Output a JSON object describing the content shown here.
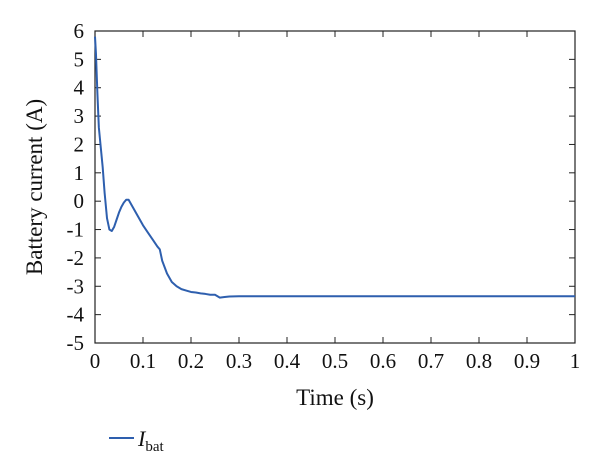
{
  "chart_data": {
    "type": "line",
    "xlabel": "Time (s)",
    "ylabel": "Battery current (A)",
    "xlim": [
      0,
      1
    ],
    "ylim": [
      -5,
      6
    ],
    "x_ticks": [
      "0",
      "0.1",
      "0.2",
      "0.3",
      "0.4",
      "0.5",
      "0.6",
      "0.7",
      "0.8",
      "0.9",
      "1"
    ],
    "y_ticks": [
      "6",
      "5",
      "4",
      "3",
      "2",
      "1",
      "0",
      "-1",
      "-2",
      "-3",
      "-4",
      "-5"
    ],
    "grid": false,
    "legend_position": "bottom-left",
    "series": [
      {
        "name_main": "I",
        "name_sub": "bat",
        "color": "#2e5fae",
        "x": [
          0,
          0.002,
          0.005,
          0.008,
          0.012,
          0.016,
          0.02,
          0.025,
          0.03,
          0.035,
          0.04,
          0.045,
          0.05,
          0.055,
          0.06,
          0.065,
          0.07,
          0.08,
          0.09,
          0.1,
          0.11,
          0.12,
          0.13,
          0.135,
          0.14,
          0.15,
          0.16,
          0.17,
          0.18,
          0.19,
          0.2,
          0.21,
          0.22,
          0.23,
          0.24,
          0.25,
          0.26,
          0.27,
          0.28,
          0.3,
          0.35,
          0.4,
          0.5,
          0.6,
          0.7,
          0.8,
          0.9,
          1.0
        ],
        "y": [
          5.8,
          5.2,
          3.8,
          2.6,
          1.9,
          1.2,
          0.3,
          -0.6,
          -1.0,
          -1.05,
          -0.9,
          -0.65,
          -0.4,
          -0.2,
          -0.05,
          0.05,
          0.05,
          -0.25,
          -0.55,
          -0.85,
          -1.1,
          -1.35,
          -1.6,
          -1.7,
          -2.1,
          -2.55,
          -2.85,
          -3.0,
          -3.1,
          -3.15,
          -3.2,
          -3.22,
          -3.25,
          -3.27,
          -3.3,
          -3.3,
          -3.4,
          -3.38,
          -3.36,
          -3.35,
          -3.35,
          -3.35,
          -3.35,
          -3.35,
          -3.35,
          -3.35,
          -3.35,
          -3.35
        ]
      }
    ]
  }
}
